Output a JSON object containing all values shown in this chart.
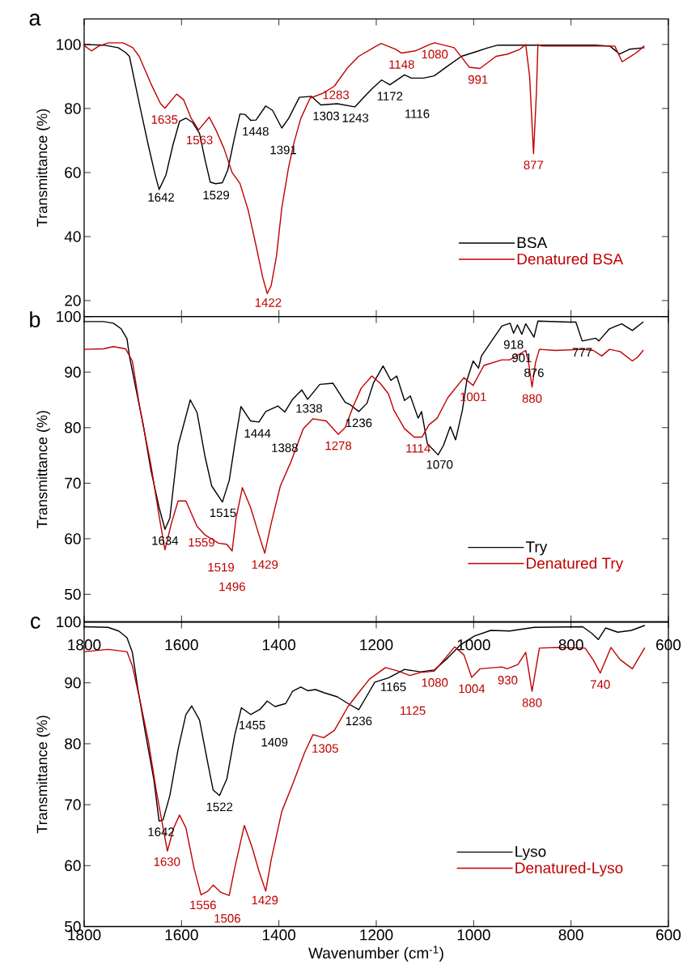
{
  "chart_data": [
    {
      "type": "line",
      "title": "a",
      "ylabel": "Transmittance (%)",
      "xlim": [
        1800,
        600
      ],
      "xticks": [
        1800,
        1600,
        1400,
        1200,
        1000,
        800,
        600
      ],
      "ylim": [
        15,
        108
      ],
      "yticks": [
        20,
        40,
        60,
        80,
        100
      ],
      "tick_labels": "y",
      "legend": "bottom right",
      "series": [
        {
          "name": "BSA",
          "color": "#000000",
          "x": [
            1800,
            1760,
            1730,
            1715,
            1707,
            1685,
            1668,
            1654,
            1646,
            1632,
            1618,
            1604,
            1591,
            1577,
            1563,
            1552,
            1541,
            1530,
            1516,
            1505,
            1491,
            1480,
            1469,
            1458,
            1447,
            1427,
            1413,
            1394,
            1380,
            1358,
            1333,
            1314,
            1280,
            1244,
            1225,
            1210,
            1189,
            1172,
            1142,
            1128,
            1103,
            1081,
            1053,
            1025,
            1000,
            970,
            950,
            850,
            750,
            720,
            700,
            680,
            650
          ],
          "values": [
            100,
            99.8,
            99,
            97.5,
            96.3,
            80.3,
            68.4,
            59.2,
            54.7,
            59.2,
            68.4,
            76,
            77,
            75.6,
            72.2,
            64.2,
            57,
            56.5,
            56.8,
            60.8,
            71,
            78.3,
            78.1,
            76.3,
            76.4,
            80.8,
            79.4,
            73.9,
            76.9,
            83.5,
            83.8,
            81.1,
            81.5,
            80.5,
            83.6,
            86,
            88.9,
            87.4,
            90.5,
            89.5,
            89.5,
            90.2,
            93.3,
            96.3,
            97.5,
            99,
            99.8,
            99.8,
            99.8,
            99.5,
            97,
            98.5,
            99
          ]
        },
        {
          "name": "Denatured BSA",
          "color": "#c00000",
          "x": [
            1800,
            1785,
            1770,
            1750,
            1720,
            1700,
            1687,
            1663,
            1643,
            1634,
            1610,
            1596,
            1580,
            1565,
            1543,
            1530,
            1513,
            1496,
            1480,
            1463,
            1447,
            1433,
            1424,
            1416,
            1405,
            1394,
            1380,
            1369,
            1355,
            1336,
            1308,
            1286,
            1258,
            1236,
            1200,
            1190,
            1160,
            1148,
            1120,
            1090,
            1080,
            1040,
            1009,
            987,
            954,
            930,
            905,
            893,
            885,
            877,
            871,
            868,
            860,
            750,
            710,
            695,
            680,
            665,
            650
          ],
          "values": [
            99.7,
            98,
            99.5,
            100.5,
            100.5,
            99,
            96.3,
            87.8,
            81.5,
            80.1,
            84.5,
            82.8,
            76.9,
            73.3,
            77.3,
            73.5,
            67.6,
            60,
            56.6,
            48.2,
            37.2,
            27.1,
            22.2,
            24.6,
            33.8,
            49,
            61.7,
            69.3,
            76.9,
            83.2,
            84.9,
            87,
            92.9,
            96.3,
            99.5,
            100.3,
            98.5,
            97.3,
            98,
            100,
            100.5,
            99,
            92.9,
            92.5,
            96.3,
            97,
            98.5,
            100,
            90,
            65.9,
            85,
            100,
            99.5,
            99.5,
            99.5,
            94.6,
            96,
            97.5,
            99.5
          ]
        }
      ],
      "annotations": [
        {
          "text": "1642",
          "x": 1642,
          "y": 55.8
        },
        {
          "text": "1529",
          "x": 1529,
          "y": 56.5
        },
        {
          "text": "1448",
          "x": 1448,
          "y": 76.4
        },
        {
          "text": "1391",
          "x": 1391,
          "y": 74.4
        },
        {
          "text": "1303",
          "x": 1303,
          "y": 81.2
        },
        {
          "text": "1243",
          "x": 1243,
          "y": 80.6
        },
        {
          "text": "1172",
          "x": 1172,
          "y": 87.4
        },
        {
          "text": "1116",
          "x": 1116,
          "y": 89.5
        },
        {
          "text": "1635",
          "x": 1635,
          "y": 80.1
        },
        {
          "text": "1563",
          "x": 1563,
          "y": 73.7
        },
        {
          "text": "1422",
          "x": 1422,
          "y": 22.9
        },
        {
          "text": "1283",
          "x": 1283,
          "y": 87.8
        },
        {
          "text": "1148",
          "x": 1148,
          "y": 97.3
        },
        {
          "text": "1080",
          "x": 1080,
          "y": 100.5
        },
        {
          "text": "991",
          "x": 991,
          "y": 92.6
        },
        {
          "text": "877",
          "x": 877,
          "y": 65.9
        }
      ]
    },
    {
      "type": "line",
      "title": "b",
      "ylabel": "Transmittance (%)",
      "xlim": [
        1800,
        600
      ],
      "xticks": [
        1800,
        1600,
        1400,
        1200,
        1000,
        800,
        600
      ],
      "ylim": [
        45,
        100
      ],
      "yticks": [
        50,
        60,
        70,
        80,
        90,
        100
      ],
      "tick_labels": "y",
      "legend": "bottom right",
      "series": [
        {
          "name": "Try",
          "color": "#000000",
          "x": [
            1800,
            1760,
            1740,
            1724,
            1712,
            1707,
            1696,
            1679,
            1663,
            1646,
            1634,
            1624,
            1607,
            1582,
            1568,
            1552,
            1538,
            1516,
            1502,
            1491,
            1478,
            1458,
            1441,
            1427,
            1402,
            1388,
            1372,
            1353,
            1341,
            1316,
            1289,
            1264,
            1253,
            1236,
            1219,
            1206,
            1186,
            1170,
            1158,
            1142,
            1130,
            1114,
            1107,
            1095,
            1073,
            1062,
            1048,
            1037,
            1023,
            1014,
            1001,
            990,
            984,
            960,
            942,
            925,
            918,
            910,
            901,
            893,
            876,
            868,
            804,
            790,
            777,
            749,
            743,
            721,
            696,
            674,
            652
          ],
          "values": [
            99.1,
            99.1,
            98.8,
            97.8,
            96,
            92.9,
            88,
            80.7,
            72.4,
            65.6,
            61.7,
            63.7,
            76.8,
            85,
            82.7,
            74.9,
            69.5,
            66.6,
            70.5,
            76.8,
            83.8,
            81.2,
            81,
            82.9,
            83.9,
            82.8,
            85.1,
            86.8,
            85.1,
            87.8,
            88,
            84.6,
            84.1,
            82.9,
            84.4,
            88,
            91.1,
            88.5,
            89.3,
            84.9,
            85.7,
            81.7,
            82.9,
            77.1,
            75.1,
            76.8,
            80.2,
            77.8,
            83.2,
            88.5,
            92,
            90.7,
            92.9,
            96,
            98.3,
            98.8,
            97.0,
            98.5,
            96.8,
            98.7,
            96.3,
            99.2,
            99,
            99,
            95.6,
            96.1,
            95.6,
            97.8,
            98.7,
            97.5,
            99
          ]
        },
        {
          "name": "Denatured Try",
          "color": "#c00000",
          "x": [
            1800,
            1760,
            1740,
            1715,
            1701,
            1685,
            1663,
            1646,
            1634,
            1621,
            1607,
            1591,
            1568,
            1552,
            1535,
            1524,
            1507,
            1496,
            1488,
            1475,
            1458,
            1441,
            1429,
            1416,
            1397,
            1375,
            1350,
            1330,
            1303,
            1278,
            1264,
            1247,
            1231,
            1209,
            1192,
            1175,
            1164,
            1142,
            1122,
            1106,
            1092,
            1075,
            1053,
            1020,
            1001,
            979,
            942,
            926,
            893,
            887,
            880,
            873,
            865,
            832,
            776,
            754,
            737,
            721,
            699,
            674,
            663,
            652
          ],
          "values": [
            94.1,
            94.2,
            94.6,
            94.2,
            92,
            83.2,
            73.4,
            64.1,
            58,
            62.7,
            66.8,
            66.8,
            62.2,
            60.7,
            59.8,
            59.2,
            59,
            57.8,
            63.7,
            69.2,
            65.6,
            60.7,
            57.4,
            62.7,
            69.5,
            73.9,
            79.8,
            81.6,
            81.2,
            78.8,
            80,
            83.9,
            87.1,
            89.3,
            88,
            86.1,
            83.2,
            79.8,
            78.3,
            78.3,
            80.5,
            81.7,
            85.4,
            89,
            87.6,
            91.2,
            92.2,
            92.2,
            93.9,
            91.7,
            87.3,
            91.7,
            94.1,
            93.9,
            94.1,
            93.9,
            92.9,
            94.1,
            93.7,
            92,
            92.7,
            93.9
          ]
        }
      ],
      "annotations": [
        {
          "text": "1634",
          "x": 1634,
          "y": 61.7
        },
        {
          "text": "1515",
          "x": 1515,
          "y": 66.7
        },
        {
          "text": "1444",
          "x": 1444,
          "y": 81
        },
        {
          "text": "1388",
          "x": 1388,
          "y": 82.8
        },
        {
          "text": "1338",
          "x": 1338,
          "y": 85.5
        },
        {
          "text": "1236",
          "x": 1236,
          "y": 82.9
        },
        {
          "text": "1070",
          "x": 1070,
          "y": 75.4
        },
        {
          "text": "918",
          "x": 918,
          "y": 97.0
        },
        {
          "text": "901",
          "x": 901,
          "y": 96.8
        },
        {
          "text": "876",
          "x": 876,
          "y": 96.3
        },
        {
          "text": "777",
          "x": 777,
          "y": 95.6
        },
        {
          "text": "1559",
          "x": 1559,
          "y": 61.4
        },
        {
          "text": "1519",
          "x": 1519,
          "y": 59.1
        },
        {
          "text": "1496",
          "x": 1496,
          "y": 57.8
        },
        {
          "text": "1429",
          "x": 1429,
          "y": 57.4
        },
        {
          "text": "1278",
          "x": 1278,
          "y": 78.8
        },
        {
          "text": "1114",
          "x": 1114,
          "y": 78.3
        },
        {
          "text": "1001",
          "x": 1001,
          "y": 87.6
        },
        {
          "text": "880",
          "x": 880,
          "y": 87.3
        }
      ]
    },
    {
      "type": "line",
      "title": "c",
      "xlabel": "Wavenumber (cm$^{-1}$)",
      "ylabel": "Transmittance (%)",
      "xlim": [
        1800,
        600
      ],
      "xticks": [
        1800,
        1600,
        1400,
        1200,
        1000,
        800,
        600
      ],
      "x2lim": [
        1800,
        600
      ],
      "x2ticks": [
        1800,
        1600,
        1400,
        1200,
        1000,
        800,
        600
      ],
      "ylim": [
        50,
        100
      ],
      "yticks": [
        50,
        60,
        70,
        80,
        90,
        100
      ],
      "legend": "bottom right",
      "series": [
        {
          "name": "Lyso",
          "color": "#000000",
          "x": [
            1800,
            1751,
            1729,
            1712,
            1701,
            1690,
            1674,
            1657,
            1646,
            1638,
            1624,
            1607,
            1591,
            1579,
            1563,
            1546,
            1535,
            1522,
            1507,
            1491,
            1477,
            1458,
            1438,
            1424,
            1408,
            1386,
            1372,
            1355,
            1341,
            1325,
            1308,
            1280,
            1258,
            1236,
            1219,
            1203,
            1175,
            1142,
            1109,
            1081,
            1053,
            1026,
            998,
            965,
            926,
            876,
            776,
            757,
            744,
            729,
            704,
            676,
            649
          ],
          "values": [
            99.2,
            99.1,
            98.5,
            97.4,
            95,
            89.2,
            81.7,
            74.2,
            67.3,
            67.5,
            71.5,
            79.1,
            84.8,
            86.2,
            83.9,
            76.8,
            72.4,
            71.5,
            74.2,
            81.3,
            85.9,
            84.8,
            85.7,
            87,
            86.1,
            86.6,
            88.6,
            89.3,
            88.7,
            88.9,
            88.4,
            87.7,
            86.6,
            85.6,
            87.9,
            90.1,
            90.8,
            92.2,
            91.8,
            92.1,
            94.1,
            96.3,
            97.7,
            98.6,
            98.5,
            99.1,
            99.2,
            98.1,
            97.1,
            99,
            98.3,
            98.6,
            99.4
          ]
        },
        {
          "name": "Denatured-Lyso",
          "color": "#c00000",
          "x": [
            1800,
            1751,
            1712,
            1701,
            1685,
            1668,
            1652,
            1640,
            1629,
            1616,
            1604,
            1591,
            1574,
            1560,
            1546,
            1535,
            1519,
            1502,
            1491,
            1471,
            1455,
            1441,
            1427,
            1416,
            1394,
            1372,
            1347,
            1330,
            1308,
            1286,
            1258,
            1236,
            1214,
            1181,
            1158,
            1131,
            1109,
            1081,
            1064,
            1039,
            1020,
            1004,
            987,
            942,
            931,
            909,
            893,
            880,
            865,
            832,
            771,
            754,
            740,
            718,
            699,
            674,
            649
          ],
          "values": [
            95.1,
            95.5,
            95.1,
            92.8,
            87,
            80.4,
            72.4,
            67.1,
            62.4,
            66.2,
            68.3,
            66.2,
            59.5,
            55.2,
            55.8,
            56.8,
            55.6,
            55.1,
            59.5,
            66.6,
            63,
            59.1,
            55.8,
            60.9,
            68.9,
            73.3,
            78.6,
            81.5,
            81,
            82.2,
            86.1,
            88.4,
            90.6,
            92.5,
            92,
            91.2,
            91.7,
            91.9,
            93.5,
            95.9,
            94.6,
            90.9,
            92.3,
            92.6,
            92.3,
            93,
            95,
            88.6,
            95.7,
            95.8,
            95.7,
            93.7,
            91.6,
            95.8,
            93.8,
            92.3,
            95.7
          ]
        }
      ],
      "annotations": [
        {
          "text": "1642",
          "x": 1642,
          "y": 67.4
        },
        {
          "text": "1522",
          "x": 1522,
          "y": 71.5
        },
        {
          "text": "1455",
          "x": 1455,
          "y": 84.9
        },
        {
          "text": "1409",
          "x": 1409,
          "y": 86.1
        },
        {
          "text": "1236",
          "x": 1236,
          "y": 85.6
        },
        {
          "text": "1165",
          "x": 1165,
          "y": 91.2
        },
        {
          "text": "1630",
          "x": 1630,
          "y": 62.5
        },
        {
          "text": "1556",
          "x": 1556,
          "y": 55.4
        },
        {
          "text": "1506",
          "x": 1506,
          "y": 55.2
        },
        {
          "text": "1429",
          "x": 1429,
          "y": 56.2
        },
        {
          "text": "1305",
          "x": 1305,
          "y": 81.1
        },
        {
          "text": "1125",
          "x": 1125,
          "y": 91.3
        },
        {
          "text": "1080",
          "x": 1080,
          "y": 91.9
        },
        {
          "text": "1004",
          "x": 1004,
          "y": 90.9
        },
        {
          "text": "930",
          "x": 930,
          "y": 92.3
        },
        {
          "text": "880",
          "x": 880,
          "y": 88.6
        },
        {
          "text": "740",
          "x": 740,
          "y": 91.6
        }
      ]
    }
  ]
}
